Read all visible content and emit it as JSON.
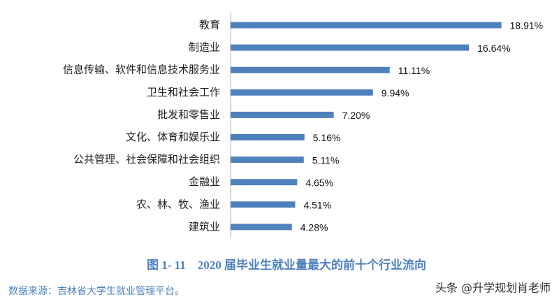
{
  "chart_data": {
    "type": "hbar",
    "caption": "图 1- 11    2020 届毕业生就业量最大的前十个行业流向",
    "source": "数据来源：吉林省大学生就业管理平台。",
    "watermark": "头条 @升学规划肖老师",
    "categories": [
      "教育",
      "制造业",
      "信息传输、软件和信息技术服务业",
      "卫生和社会工作",
      "批发和零售业",
      "文化、体育和娱乐业",
      "公共管理、社会保障和社会组织",
      "金融业",
      "农、林、牧、渔业",
      "建筑业"
    ],
    "values": [
      18.91,
      16.64,
      11.11,
      9.94,
      7.2,
      5.16,
      5.11,
      4.65,
      4.51,
      4.28
    ],
    "value_labels": [
      "18.91%",
      "16.64%",
      "11.11%",
      "9.94%",
      "7.20%",
      "5.16%",
      "5.11%",
      "4.65%",
      "4.51%",
      "4.28%"
    ],
    "color": "#4f81bd",
    "xlim": [
      0,
      20
    ]
  }
}
